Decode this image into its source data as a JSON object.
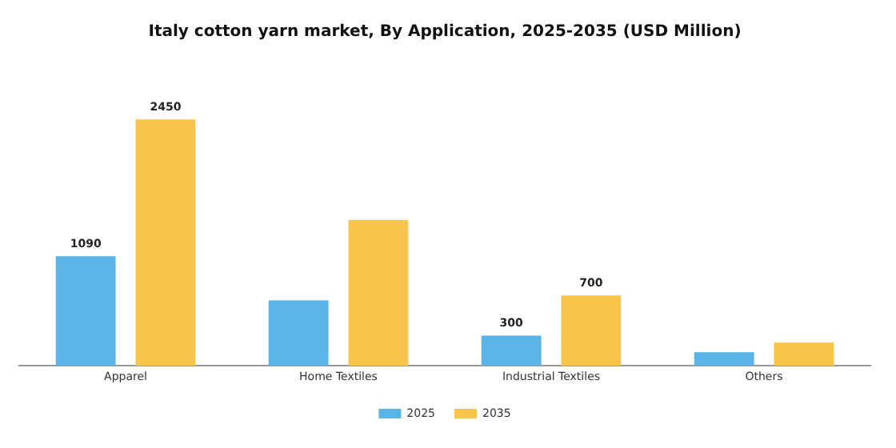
{
  "chart_data": {
    "type": "bar",
    "title": "Italy cotton yarn market, By Application, 2025-2035 (USD Million)",
    "categories": [
      "Apparel",
      "Home Textiles",
      "Industrial Textiles",
      "Others"
    ],
    "series": [
      {
        "name": "2025",
        "color": "#5ab4e6",
        "values": [
          1090,
          650,
          300,
          135
        ],
        "value_labels": [
          "1090",
          null,
          "300",
          null
        ]
      },
      {
        "name": "2035",
        "color": "#f9c44a",
        "values": [
          2450,
          1450,
          700,
          230
        ],
        "value_labels": [
          "2450",
          null,
          "700",
          null
        ]
      }
    ],
    "legend": "bottom",
    "grid": false
  }
}
